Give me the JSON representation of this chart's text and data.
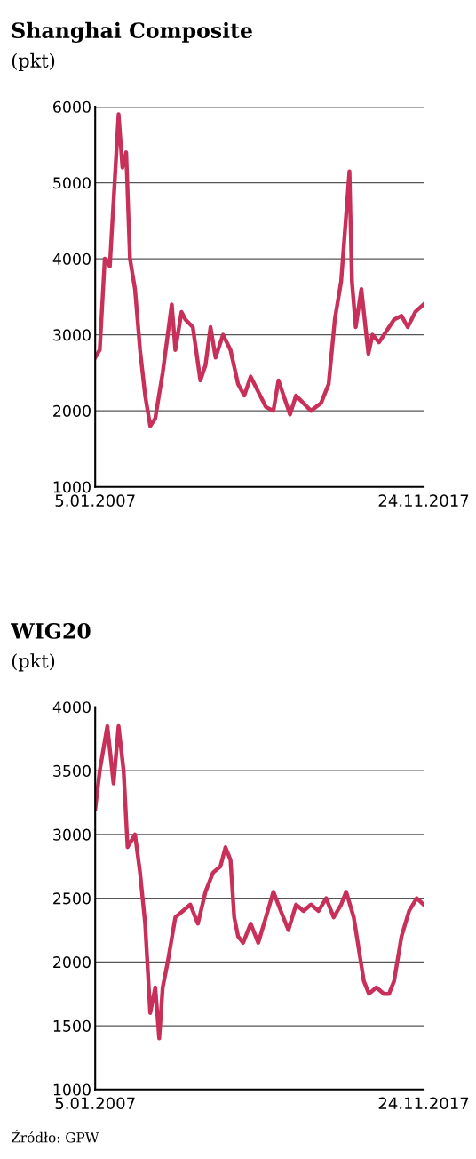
{
  "chart_data": [
    {
      "type": "line",
      "title": "Shanghai Composite",
      "subtitle": "(pkt)",
      "x": [
        "2007-01-05",
        "2007-03-01",
        "2007-05-01",
        "2007-07-01",
        "2007-10-15",
        "2007-12-01",
        "2008-01-15",
        "2008-03-01",
        "2008-05-01",
        "2008-07-01",
        "2008-09-01",
        "2008-11-01",
        "2009-01-01",
        "2009-04-01",
        "2009-07-20",
        "2009-09-01",
        "2009-11-15",
        "2010-01-01",
        "2010-04-01",
        "2010-07-01",
        "2010-09-01",
        "2010-11-01",
        "2011-01-01",
        "2011-04-01",
        "2011-07-01",
        "2011-10-01",
        "2011-12-15",
        "2012-03-01",
        "2012-06-01",
        "2012-09-01",
        "2012-12-01",
        "2013-02-01",
        "2013-06-20",
        "2013-09-01",
        "2013-12-01",
        "2014-03-01",
        "2014-07-01",
        "2014-10-01",
        "2014-12-15",
        "2015-03-01",
        "2015-06-10",
        "2015-07-10",
        "2015-08-25",
        "2015-11-01",
        "2016-01-25",
        "2016-03-15",
        "2016-06-01",
        "2016-09-01",
        "2016-12-01",
        "2017-03-01",
        "2017-05-15",
        "2017-08-15",
        "2017-11-24"
      ],
      "series": [
        {
          "color": "#c8305a",
          "values": [
            2700,
            2800,
            4000,
            3900,
            5900,
            5200,
            5400,
            4000,
            3600,
            2800,
            2200,
            1800,
            1900,
            2500,
            3400,
            2800,
            3300,
            3200,
            3100,
            2400,
            2600,
            3100,
            2700,
            3000,
            2800,
            2350,
            2200,
            2450,
            2250,
            2050,
            2000,
            2400,
            1950,
            2200,
            2100,
            2000,
            2100,
            2350,
            3200,
            3700,
            5150,
            3700,
            3100,
            3600,
            2750,
            3000,
            2900,
            3050,
            3200,
            3250,
            3100,
            3300,
            3400
          ]
        }
      ],
      "xlim": [
        "2007-01-05",
        "2017-11-24"
      ],
      "xticks": [
        {
          "value": "2007-01-05",
          "label": "5.01.2007"
        },
        {
          "value": "2017-11-24",
          "label": "24.11.2017"
        }
      ],
      "ylim": [
        1000,
        6000
      ],
      "yticks": [
        1000,
        2000,
        3000,
        4000,
        5000,
        6000
      ],
      "grid": "y",
      "legend": false,
      "marker": "none",
      "line_style": "solid"
    },
    {
      "type": "line",
      "title": "WIG20",
      "subtitle": "(pkt)",
      "annotations": [
        "Źródło: GPW"
      ],
      "x": [
        "2007-01-05",
        "2007-03-01",
        "2007-06-01",
        "2007-08-15",
        "2007-10-15",
        "2007-12-15",
        "2008-02-01",
        "2008-05-01",
        "2008-07-01",
        "2008-09-01",
        "2008-11-01",
        "2009-01-01",
        "2009-02-18",
        "2009-04-01",
        "2009-06-01",
        "2009-09-01",
        "2009-12-01",
        "2010-03-01",
        "2010-06-01",
        "2010-09-01",
        "2010-12-01",
        "2011-03-01",
        "2011-05-01",
        "2011-07-01",
        "2011-08-15",
        "2011-10-01",
        "2011-12-01",
        "2012-03-01",
        "2012-06-01",
        "2012-09-01",
        "2012-12-01",
        "2013-03-01",
        "2013-06-01",
        "2013-09-01",
        "2013-12-01",
        "2014-03-01",
        "2014-06-01",
        "2014-09-01",
        "2014-12-01",
        "2015-03-01",
        "2015-05-01",
        "2015-08-01",
        "2015-10-01",
        "2015-12-01",
        "2016-02-01",
        "2016-05-01",
        "2016-08-01",
        "2016-10-01",
        "2016-12-01",
        "2017-03-01",
        "2017-06-01",
        "2017-09-01",
        "2017-11-24"
      ],
      "series": [
        {
          "color": "#c8305a",
          "values": [
            3200,
            3500,
            3850,
            3400,
            3850,
            3500,
            2900,
            3000,
            2700,
            2300,
            1600,
            1800,
            1400,
            1800,
            2000,
            2350,
            2400,
            2450,
            2300,
            2550,
            2700,
            2750,
            2900,
            2800,
            2350,
            2200,
            2150,
            2300,
            2150,
            2350,
            2550,
            2400,
            2250,
            2450,
            2400,
            2450,
            2400,
            2500,
            2350,
            2450,
            2550,
            2350,
            2100,
            1850,
            1750,
            1800,
            1750,
            1750,
            1850,
            2200,
            2400,
            2500,
            2450
          ]
        }
      ],
      "xlim": [
        "2007-01-05",
        "2017-11-24"
      ],
      "xticks": [
        {
          "value": "2007-01-05",
          "label": "5.01.2007"
        },
        {
          "value": "2017-11-24",
          "label": "24.11.2017"
        }
      ],
      "ylim": [
        1000,
        4000
      ],
      "yticks": [
        1000,
        1500,
        2000,
        2500,
        3000,
        3500,
        4000
      ],
      "grid": "y",
      "legend": false,
      "marker": "none",
      "line_style": "solid"
    }
  ]
}
